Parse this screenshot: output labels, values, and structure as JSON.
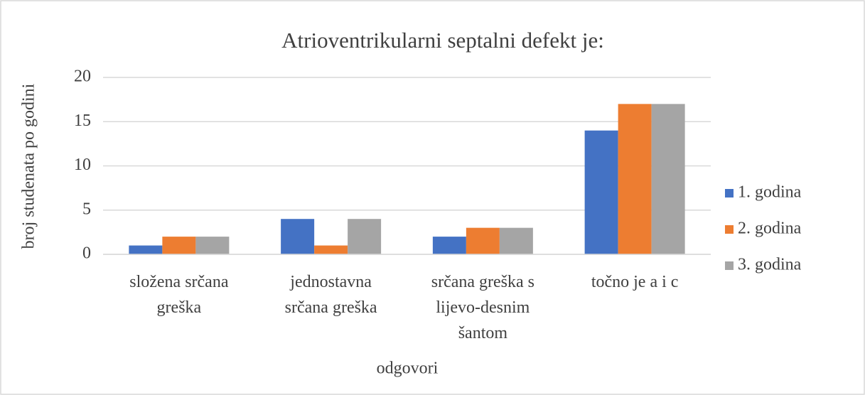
{
  "chart_data": {
    "type": "bar",
    "title": "Atrioventrikularni septalni defekt je:",
    "x_label": "odgovori",
    "y_label": "broj studenata po godini",
    "categories": [
      "složena srčana greška",
      "jednostavna srčana greška",
      "srčana greška s lijevo-desnim šantom",
      "točno je a i c"
    ],
    "series": [
      {
        "name": "1. godina",
        "color": "#4472c4",
        "values": [
          1,
          4,
          2,
          14
        ]
      },
      {
        "name": "2. godina",
        "color": "#ed7d31",
        "values": [
          2,
          1,
          3,
          17
        ]
      },
      {
        "name": "3. godina",
        "color": "#a5a5a5",
        "values": [
          2,
          4,
          3,
          17
        ]
      }
    ],
    "ylim": [
      0,
      20
    ],
    "yticks": [
      0,
      5,
      10,
      15,
      20
    ],
    "grid": true,
    "legend": "right"
  }
}
